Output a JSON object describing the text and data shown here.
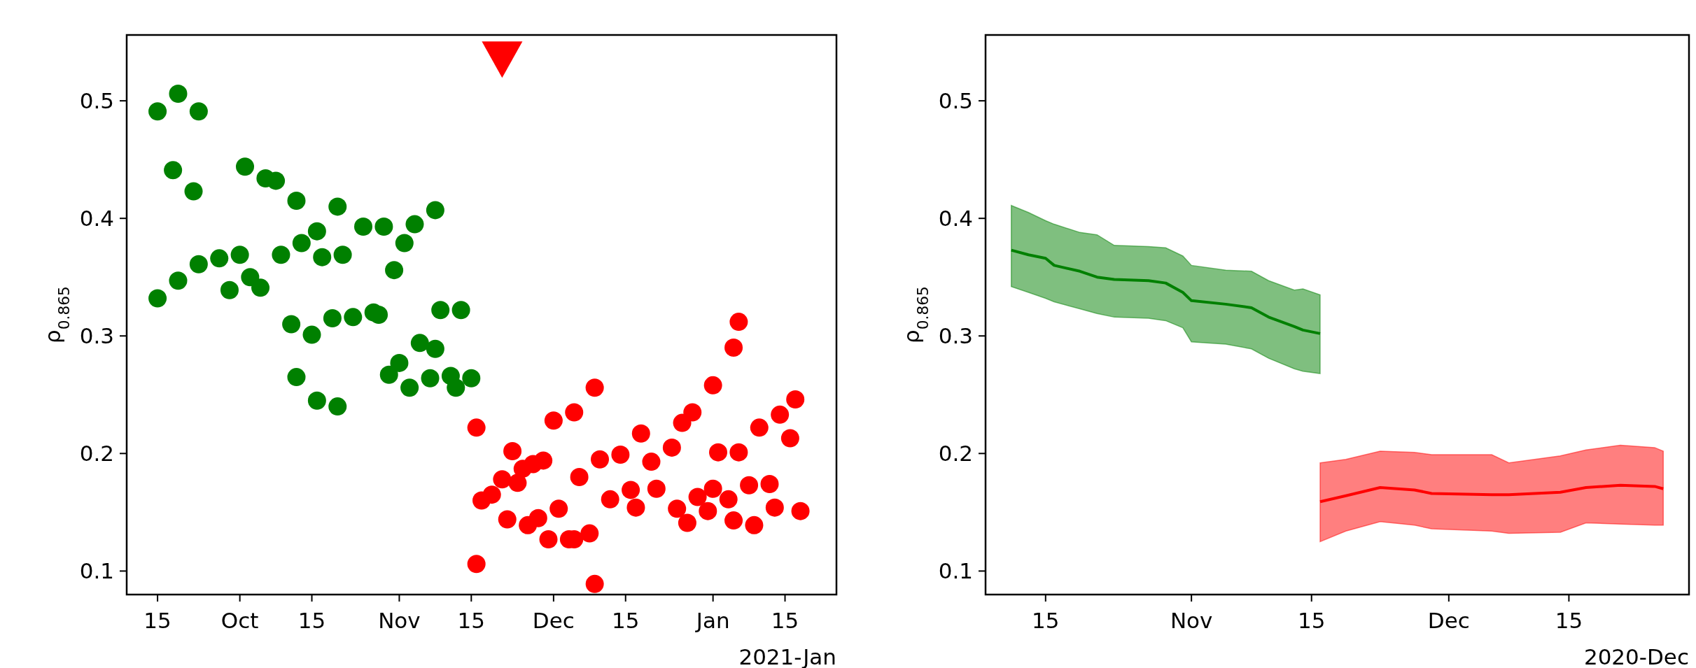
{
  "chart_data": [
    {
      "type": "scatter",
      "ylabel": "ρ$_{0.865}$",
      "xlabel": "2021-Jan",
      "marker": "circle",
      "grid": false,
      "xlim": [
        "2020-09-09",
        "2021-01-25"
      ],
      "ylim": [
        0.08,
        0.556
      ],
      "xticks": [
        {
          "value": "2020-09-15",
          "label": "15"
        },
        {
          "value": "2020-10-01",
          "label": "Oct"
        },
        {
          "value": "2020-10-15",
          "label": "15"
        },
        {
          "value": "2020-11-01",
          "label": "Nov"
        },
        {
          "value": "2020-11-15",
          "label": "15"
        },
        {
          "value": "2020-12-01",
          "label": "Dec"
        },
        {
          "value": "2020-12-15",
          "label": "15"
        },
        {
          "value": "2021-01-01",
          "label": "Jan"
        },
        {
          "value": "2021-01-15",
          "label": "15"
        }
      ],
      "yticks": [
        0.1,
        0.2,
        0.3,
        0.4,
        0.5
      ],
      "series": [
        {
          "color": "#008000",
          "x": [
            "2020-09-15",
            "2020-09-15",
            "2020-09-18",
            "2020-09-19",
            "2020-09-19",
            "2020-09-22",
            "2020-09-23",
            "2020-09-23",
            "2020-09-27",
            "2020-09-29",
            "2020-10-01",
            "2020-10-02",
            "2020-10-03",
            "2020-10-05",
            "2020-10-06",
            "2020-10-08",
            "2020-10-09",
            "2020-10-11",
            "2020-10-12",
            "2020-10-12",
            "2020-10-13",
            "2020-10-15",
            "2020-10-16",
            "2020-10-16",
            "2020-10-17",
            "2020-10-19",
            "2020-10-20",
            "2020-10-20",
            "2020-10-21",
            "2020-10-23",
            "2020-10-25",
            "2020-10-27",
            "2020-10-28",
            "2020-10-29",
            "2020-10-30",
            "2020-10-31",
            "2020-11-01",
            "2020-11-02",
            "2020-11-03",
            "2020-11-04",
            "2020-11-05",
            "2020-11-07",
            "2020-11-08",
            "2020-11-08",
            "2020-11-09",
            "2020-11-11",
            "2020-11-12",
            "2020-11-13",
            "2020-11-15"
          ],
          "values": [
            0.332,
            0.491,
            0.441,
            0.506,
            0.347,
            0.423,
            0.491,
            0.361,
            0.366,
            0.339,
            0.369,
            0.444,
            0.35,
            0.341,
            0.434,
            0.432,
            0.369,
            0.31,
            0.415,
            0.265,
            0.379,
            0.301,
            0.389,
            0.245,
            0.367,
            0.315,
            0.41,
            0.24,
            0.369,
            0.316,
            0.393,
            0.32,
            0.318,
            0.393,
            0.267,
            0.356,
            0.277,
            0.379,
            0.256,
            0.395,
            0.294,
            0.264,
            0.407,
            0.289,
            0.322,
            0.266,
            0.256,
            0.322,
            0.264
          ]
        },
        {
          "color": "#ff0000",
          "x": [
            "2020-11-16",
            "2020-11-16",
            "2020-11-17",
            "2020-11-19",
            "2020-11-21",
            "2020-11-22",
            "2020-11-23",
            "2020-11-24",
            "2020-11-25",
            "2020-11-26",
            "2020-11-27",
            "2020-11-28",
            "2020-11-29",
            "2020-11-30",
            "2020-12-01",
            "2020-12-02",
            "2020-12-04",
            "2020-12-05",
            "2020-12-05",
            "2020-12-06",
            "2020-12-08",
            "2020-12-09",
            "2020-12-09",
            "2020-12-10",
            "2020-12-12",
            "2020-12-14",
            "2020-12-16",
            "2020-12-17",
            "2020-12-18",
            "2020-12-20",
            "2020-12-21",
            "2020-12-24",
            "2020-12-25",
            "2020-12-26",
            "2020-12-27",
            "2020-12-28",
            "2020-12-29",
            "2020-12-31",
            "2021-01-01",
            "2021-01-01",
            "2021-01-02",
            "2021-01-04",
            "2021-01-05",
            "2021-01-05",
            "2021-01-06",
            "2021-01-06",
            "2021-01-08",
            "2021-01-09",
            "2021-01-10",
            "2021-01-12",
            "2021-01-13",
            "2021-01-14",
            "2021-01-16",
            "2021-01-17",
            "2021-01-18"
          ],
          "values": [
            0.222,
            0.106,
            0.16,
            0.165,
            0.178,
            0.144,
            0.202,
            0.175,
            0.187,
            0.139,
            0.191,
            0.145,
            0.194,
            0.127,
            0.228,
            0.153,
            0.127,
            0.235,
            0.127,
            0.18,
            0.132,
            0.089,
            0.256,
            0.195,
            0.161,
            0.199,
            0.169,
            0.154,
            0.217,
            0.193,
            0.17,
            0.205,
            0.153,
            0.226,
            0.141,
            0.235,
            0.163,
            0.151,
            0.17,
            0.258,
            0.201,
            0.161,
            0.143,
            0.29,
            0.201,
            0.312,
            0.173,
            0.139,
            0.222,
            0.174,
            0.154,
            0.233,
            0.213,
            0.246,
            0.151
          ]
        },
        {
          "color": "#ff0000",
          "marker": "triangle",
          "x": [
            "2020-11-21"
          ],
          "values": [
            0.535
          ]
        }
      ]
    },
    {
      "type": "line",
      "ylabel": "ρ$_{0.865}$",
      "xlabel": "2020-Dec",
      "grid": false,
      "xlim": [
        "2020-10-08",
        "2020-12-29"
      ],
      "ylim": [
        0.08,
        0.556
      ],
      "xticks": [
        {
          "value": "2020-10-15",
          "label": "15"
        },
        {
          "value": "2020-11-01",
          "label": "Nov"
        },
        {
          "value": "2020-11-15",
          "label": "15"
        },
        {
          "value": "2020-12-01",
          "label": "Dec"
        },
        {
          "value": "2020-12-15",
          "label": "15"
        }
      ],
      "yticks": [
        0.1,
        0.2,
        0.3,
        0.4,
        0.5
      ],
      "series": [
        {
          "color": "#008000",
          "x": [
            "2020-10-11",
            "2020-10-13",
            "2020-10-15",
            "2020-10-16",
            "2020-10-19",
            "2020-10-21",
            "2020-10-23",
            "2020-10-27",
            "2020-10-29",
            "2020-10-31",
            "2020-11-01",
            "2020-11-05",
            "2020-11-08",
            "2020-11-10",
            "2020-11-13",
            "2020-11-14",
            "2020-11-16"
          ],
          "values": [
            0.373,
            0.369,
            0.366,
            0.36,
            0.355,
            0.35,
            0.348,
            0.347,
            0.345,
            0.337,
            0.33,
            0.327,
            0.324,
            0.316,
            0.308,
            0.305,
            0.302
          ],
          "upper": [
            0.411,
            0.405,
            0.398,
            0.395,
            0.388,
            0.386,
            0.377,
            0.376,
            0.375,
            0.368,
            0.36,
            0.356,
            0.355,
            0.347,
            0.339,
            0.34,
            0.335
          ],
          "lower": [
            0.342,
            0.337,
            0.332,
            0.329,
            0.323,
            0.319,
            0.316,
            0.315,
            0.313,
            0.307,
            0.295,
            0.293,
            0.289,
            0.281,
            0.272,
            0.27,
            0.268
          ]
        },
        {
          "color": "#ff0000",
          "x": [
            "2020-11-16",
            "2020-11-19",
            "2020-11-23",
            "2020-11-27",
            "2020-11-29",
            "2020-12-06",
            "2020-12-08",
            "2020-12-14",
            "2020-12-17",
            "2020-12-21",
            "2020-12-25",
            "2020-12-26"
          ],
          "values": [
            0.159,
            0.164,
            0.171,
            0.169,
            0.166,
            0.165,
            0.165,
            0.167,
            0.171,
            0.173,
            0.172,
            0.17
          ],
          "upper": [
            0.192,
            0.195,
            0.202,
            0.201,
            0.199,
            0.199,
            0.192,
            0.198,
            0.203,
            0.207,
            0.205,
            0.202
          ],
          "lower": [
            0.125,
            0.134,
            0.142,
            0.139,
            0.136,
            0.134,
            0.132,
            0.133,
            0.141,
            0.14,
            0.139,
            0.139
          ]
        }
      ]
    }
  ]
}
